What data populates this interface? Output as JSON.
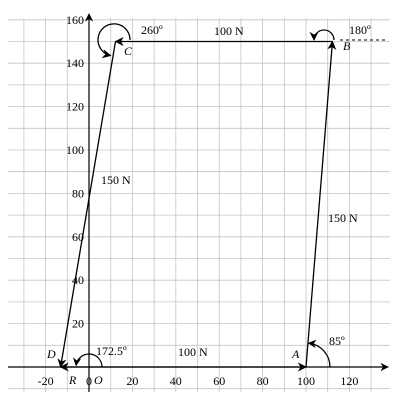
{
  "diagram": {
    "x_ticks": [
      {
        "label": "-20",
        "value": -20
      },
      {
        "label": "0",
        "value": 0
      },
      {
        "label": "20",
        "value": 20
      },
      {
        "label": "40",
        "value": 40
      },
      {
        "label": "60",
        "value": 60
      },
      {
        "label": "80",
        "value": 80
      },
      {
        "label": "100",
        "value": 100
      },
      {
        "label": "120",
        "value": 120
      }
    ],
    "y_ticks": [
      {
        "label": "20",
        "value": 20
      },
      {
        "label": "40",
        "value": 40
      },
      {
        "label": "60",
        "value": 60
      },
      {
        "label": "80",
        "value": 80
      },
      {
        "label": "100",
        "value": 100
      },
      {
        "label": "120",
        "value": 120
      },
      {
        "label": "140",
        "value": 140
      },
      {
        "label": "160",
        "value": 160
      }
    ],
    "points": [
      {
        "id": "O",
        "label": "O",
        "x": 0,
        "y": 0
      },
      {
        "id": "A",
        "label": "A",
        "x": 100,
        "y": 0
      },
      {
        "id": "B",
        "label": "B",
        "x": 112.2,
        "y": 150
      },
      {
        "id": "C",
        "label": "C",
        "x": 12.2,
        "y": 150
      },
      {
        "id": "D",
        "label": "D",
        "x": -13.1,
        "y": 0
      },
      {
        "id": "R",
        "label": "R",
        "x": -8,
        "y": 0
      }
    ],
    "vectors": [
      {
        "from": "O",
        "to": "A",
        "label": "100 N"
      },
      {
        "from": "A",
        "to": "B",
        "label": "150 N"
      },
      {
        "from": "B",
        "to": "C",
        "label": "100 N"
      },
      {
        "from": "C",
        "to": "D",
        "label": "150 N"
      }
    ],
    "angles": [
      {
        "at": "A",
        "label": "85º"
      },
      {
        "at": "B",
        "label": "180º"
      },
      {
        "at": "C",
        "label": "260º"
      },
      {
        "at": "O",
        "label": "172.5º"
      }
    ]
  }
}
